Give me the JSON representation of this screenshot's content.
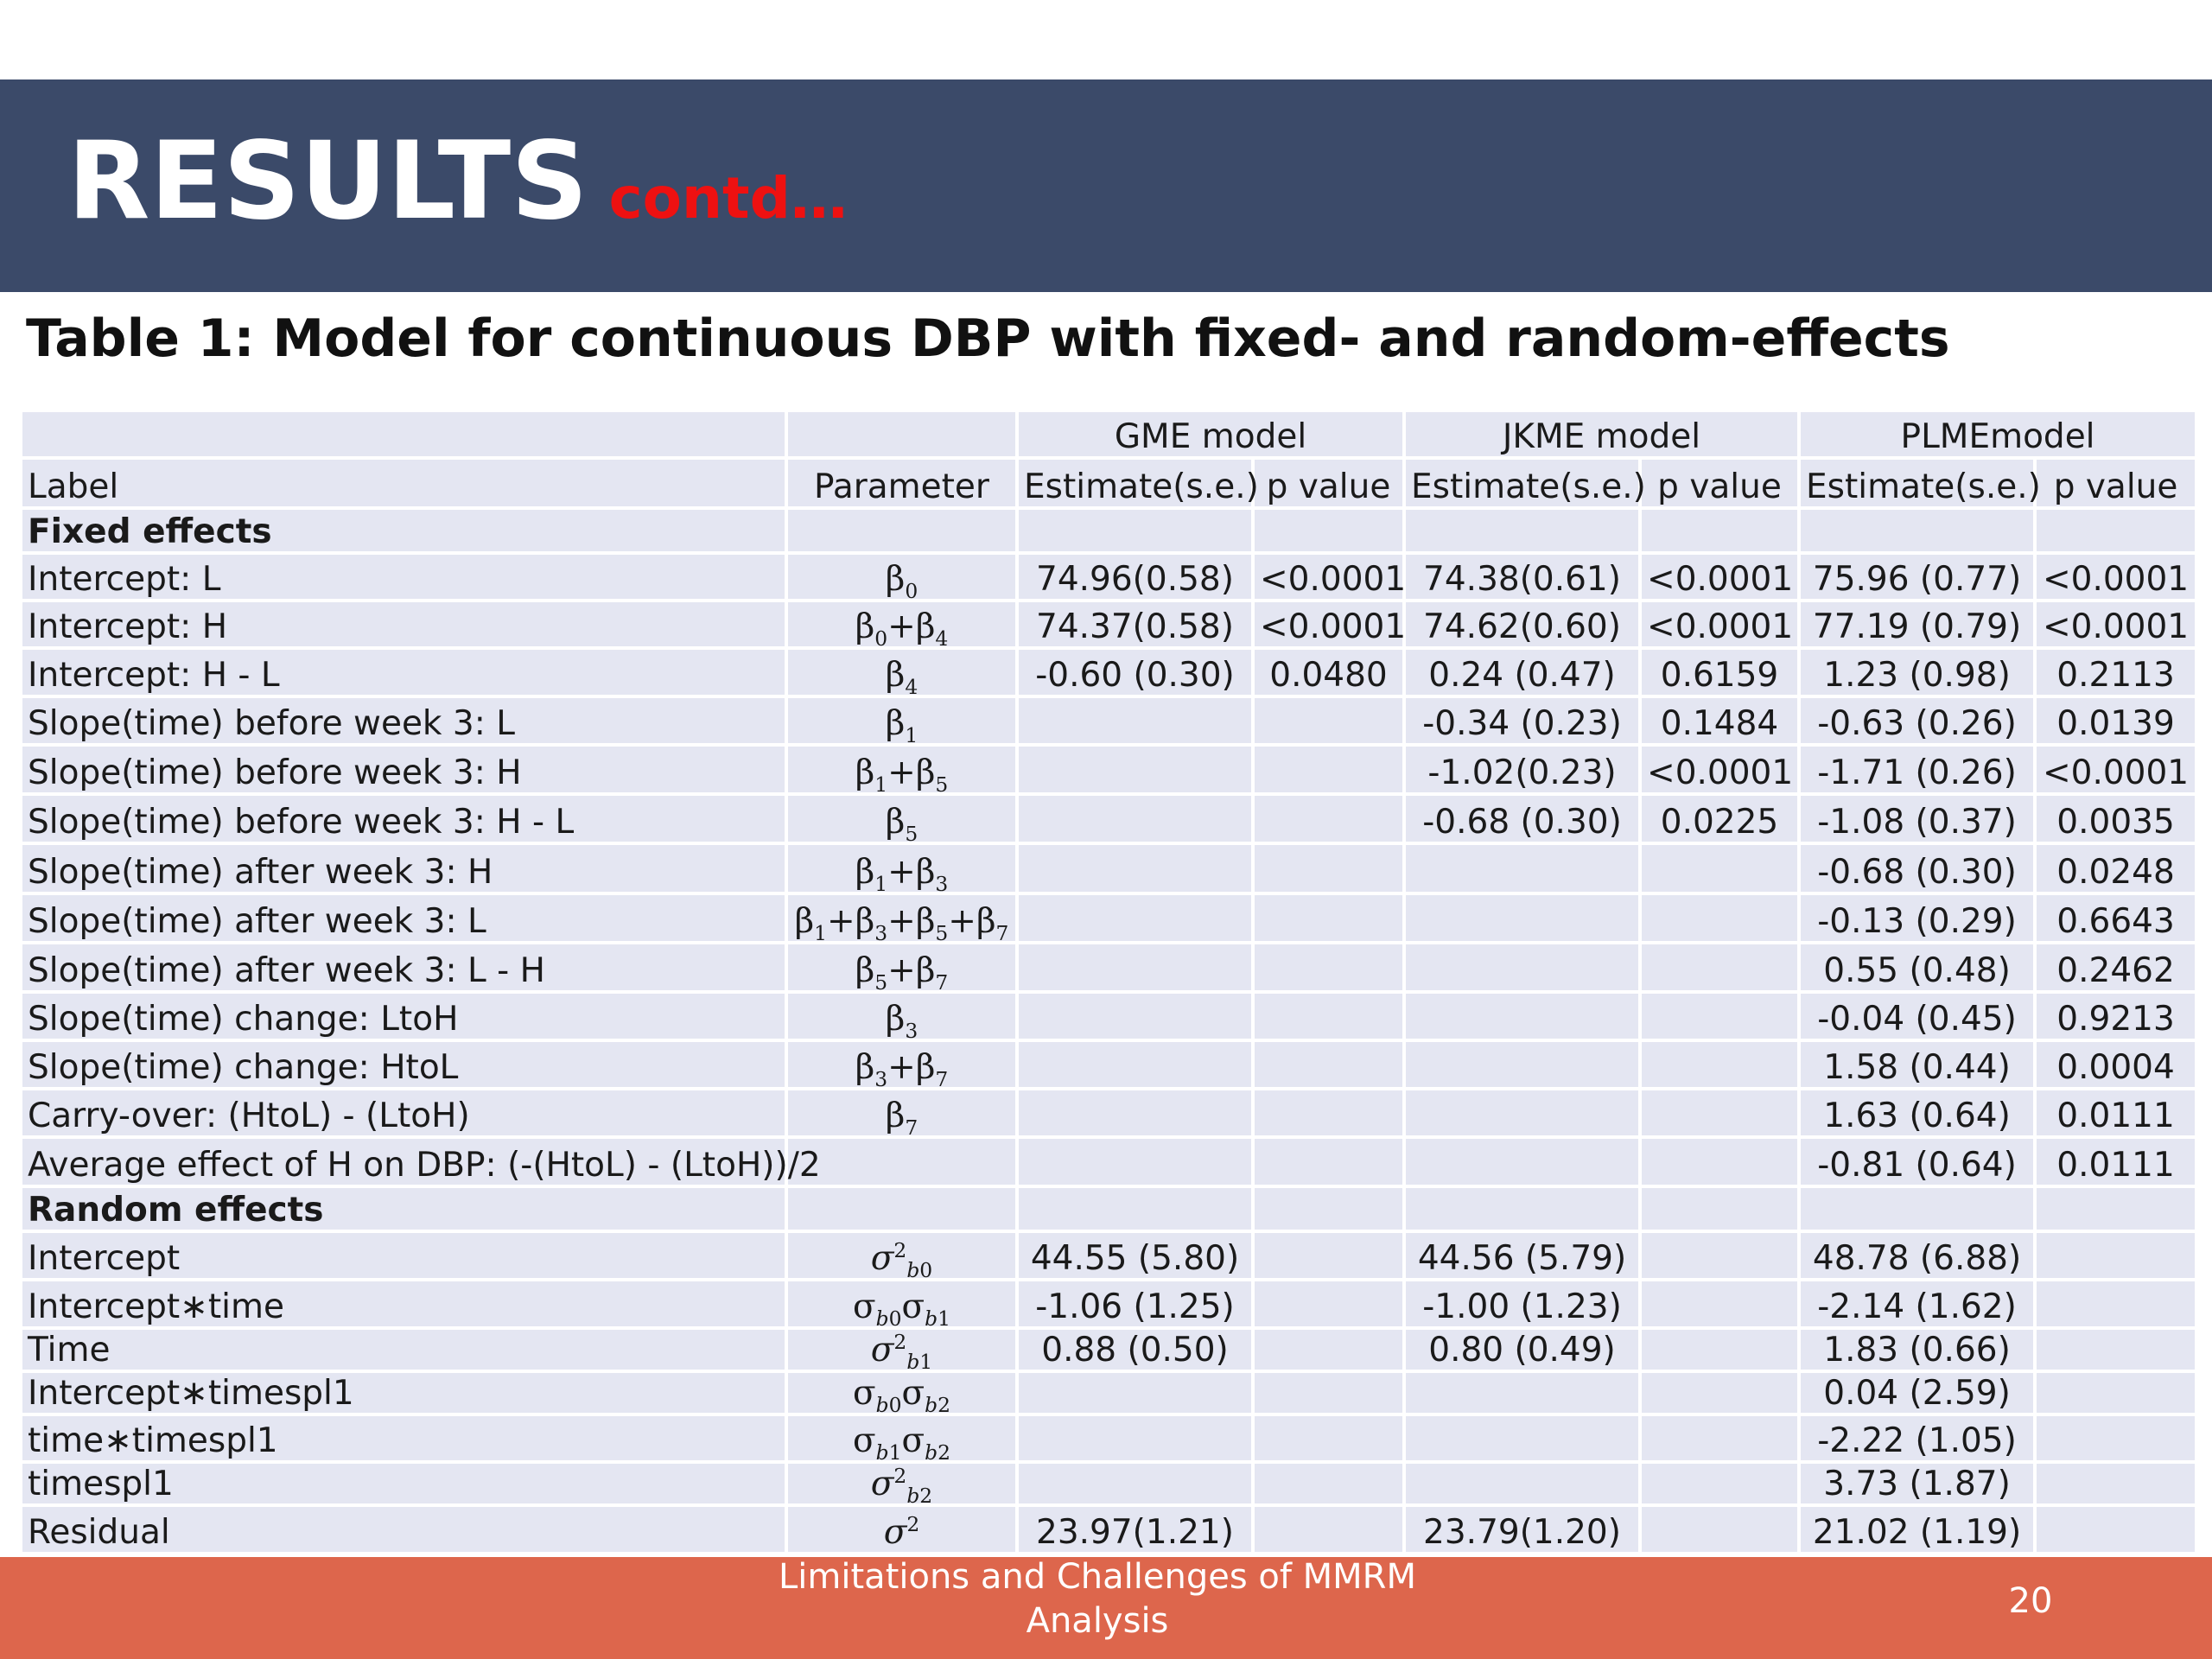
{
  "slide": {
    "title": "RESULTS",
    "title_suffix": "contd…",
    "caption": "Table 1: Model for continuous DBP with fixed- and random-effects",
    "colors": {
      "header_bg": "#3b4a69",
      "title_suffix": "#ee1111",
      "footer_bg": "#dd664c",
      "table_bg": "#e4e6f2"
    }
  },
  "table": {
    "groups": [
      "GME model",
      "JKME model",
      "PLMEmodel"
    ],
    "headers": [
      "Label",
      "Parameter",
      "Estimate(s.e.)",
      "p value",
      "Estimate(s.e.)",
      "p value",
      "Estimate(s.e.)",
      "p value"
    ],
    "section_fixed": "Fixed effects",
    "section_random": "Random effects",
    "fixed_rows": [
      {
        "label": "Intercept: L",
        "param_html": "β<sub>0</sub>",
        "cells": [
          "74.96(0.58)",
          "<0.0001",
          "74.38(0.61)",
          "<0.0001",
          "75.96 (0.77)",
          "<0.0001"
        ]
      },
      {
        "label": "Intercept: H",
        "param_html": "β<sub>0</sub>+β<sub>4</sub>",
        "cells": [
          "74.37(0.58)",
          "<0.0001",
          "74.62(0.60)",
          "<0.0001",
          "77.19 (0.79)",
          "<0.0001"
        ]
      },
      {
        "label": "Intercept: H - L",
        "param_html": "β<sub>4</sub>",
        "cells": [
          "-0.60 (0.30)",
          "0.0480",
          "0.24 (0.47)",
          "0.6159",
          "1.23 (0.98)",
          "0.2113"
        ]
      },
      {
        "label": "Slope(time) before week 3: L",
        "param_html": "β<sub>1</sub>",
        "cells": [
          "",
          "",
          "-0.34 (0.23)",
          "0.1484",
          "-0.63 (0.26)",
          "0.0139"
        ]
      },
      {
        "label": "Slope(time) before week 3: H",
        "param_html": "β<sub>1</sub>+β<sub>5</sub>",
        "cells": [
          "",
          "",
          "-1.02(0.23)",
          "<0.0001",
          "-1.71 (0.26)",
          "<0.0001"
        ]
      },
      {
        "label": "Slope(time) before week 3: H - L",
        "param_html": "β<sub>5</sub>",
        "cells": [
          "",
          "",
          "-0.68 (0.30)",
          "0.0225",
          "-1.08 (0.37)",
          "0.0035"
        ]
      },
      {
        "label": "Slope(time) after week 3: H",
        "param_html": "β<sub>1</sub>+β<sub>3</sub>",
        "cells": [
          "",
          "",
          "",
          "",
          "-0.68 (0.30)",
          "0.0248"
        ]
      },
      {
        "label": "Slope(time) after week 3: L",
        "param_html": "β<sub>1</sub>+β<sub>3</sub>+β<sub>5</sub>+β<sub>7</sub>",
        "cells": [
          "",
          "",
          "",
          "",
          "-0.13 (0.29)",
          "0.6643"
        ]
      },
      {
        "label": "Slope(time) after week 3: L - H",
        "param_html": "β<sub>5</sub>+β<sub>7</sub>",
        "cells": [
          "",
          "",
          "",
          "",
          "0.55 (0.48)",
          "0.2462"
        ]
      },
      {
        "label": "Slope(time) change: LtoH",
        "param_html": "β<sub>3</sub>",
        "cells": [
          "",
          "",
          "",
          "",
          "-0.04 (0.45)",
          "0.9213"
        ]
      },
      {
        "label": "Slope(time) change: HtoL",
        "param_html": "β<sub>3</sub>+β<sub>7</sub>",
        "cells": [
          "",
          "",
          "",
          "",
          "1.58 (0.44)",
          "0.0004"
        ]
      },
      {
        "label": "Carry-over: (HtoL) - (LtoH)",
        "param_html": "β<sub>7</sub>",
        "cells": [
          "",
          "",
          "",
          "",
          "1.63 (0.64)",
          "0.0111"
        ]
      },
      {
        "label": "Average effect of H on DBP: (-(HtoL) - (LtoH))/2",
        "param_html": "",
        "cells": [
          "",
          "",
          "",
          "",
          "-0.81 (0.64)",
          "0.0111"
        ]
      }
    ],
    "random_rows": [
      {
        "label": "Intercept",
        "param_html": "<i>σ</i><sup>2</sup><sub><i>b</i>0</sub>",
        "cells": [
          "44.55 (5.80)",
          "",
          "44.56 (5.79)",
          "",
          "48.78 (6.88)",
          ""
        ]
      },
      {
        "label": "Intercept∗time",
        "param_html": "σ<sub><i>b</i>0</sub>σ<sub><i>b</i>1</sub>",
        "cells": [
          "-1.06 (1.25)",
          "",
          "-1.00 (1.23)",
          "",
          "-2.14 (1.62)",
          ""
        ]
      },
      {
        "label": "Time",
        "param_html": "<i>σ</i><sup>2</sup><sub><i>b</i>1</sub>",
        "cells": [
          "0.88 (0.50)",
          "",
          "0.80 (0.49)",
          "",
          "1.83 (0.66)",
          ""
        ]
      },
      {
        "label": "Intercept∗timespl1",
        "param_html": "σ<sub><i>b</i>0</sub>σ<sub><i>b</i>2</sub>",
        "cells": [
          "",
          "",
          "",
          "",
          "0.04 (2.59)",
          ""
        ]
      },
      {
        "label": "time∗timespl1",
        "param_html": "σ<sub><i>b</i>1</sub>σ<sub><i>b</i>2</sub>",
        "cells": [
          "",
          "",
          "",
          "",
          "-2.22 (1.05)",
          ""
        ]
      },
      {
        "label": "timespl1",
        "param_html": "<i>σ</i><sup>2</sup><sub><i>b</i>2</sub>",
        "cells": [
          "",
          "",
          "",
          "",
          "3.73 (1.87)",
          ""
        ]
      },
      {
        "label": "Residual",
        "param_html": "<i>σ</i><sup>2</sup>",
        "cells": [
          "23.97(1.21)",
          "",
          "23.79(1.20)",
          "",
          "21.02 (1.19)",
          ""
        ]
      }
    ]
  },
  "footer": {
    "text": "Limitations and Challenges of MMRM Analysis",
    "page_number": "20"
  }
}
